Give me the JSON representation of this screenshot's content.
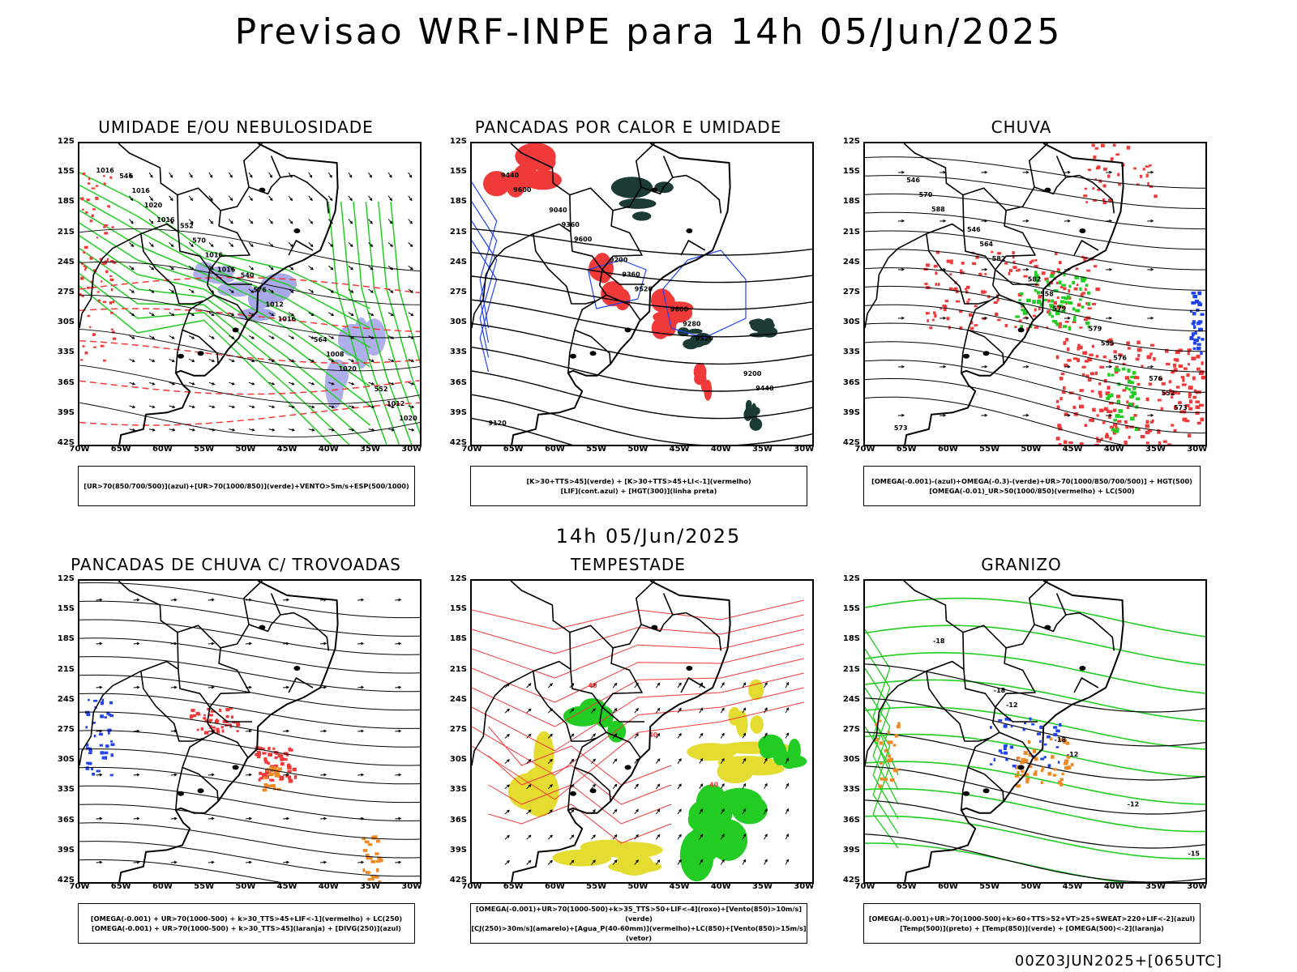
{
  "title": "Previsao WRF-INPE  para 14h 05/Jun/2025",
  "subtitle": "14h 05/Jun/2025",
  "footer": "00Z03JUN2025+[065UTC]",
  "lat_labels": [
    "12S",
    "15S",
    "18S",
    "21S",
    "24S",
    "27S",
    "30S",
    "33S",
    "36S",
    "39S",
    "42S"
  ],
  "lon_labels": [
    "70W",
    "65W",
    "60W",
    "55W",
    "50W",
    "45W",
    "40W",
    "35W",
    "30W"
  ],
  "colors": {
    "red": "#f03a3a",
    "green": "#22cc22",
    "blue": "#2244ee",
    "lavender": "#9a9ae6",
    "darkgreen": "#1d3b35",
    "yellow": "#e4dc30",
    "orange": "#ee8822",
    "black": "#000000"
  },
  "panels": [
    {
      "id": "umidade",
      "title": "UMIDADE E/OU NEBULOSIDADE",
      "legend": [
        "[UR>70(850/700/500)](azul)+[UR>70(1000/850)](verde)+VENTO>5m/s+ESP(500/1000)"
      ],
      "contour_labels": [
        "1016",
        "1016",
        "1016",
        "1016",
        "1020",
        "1020",
        "1020",
        "1016",
        "1012",
        "1008",
        "1012",
        "1016",
        "570",
        "576",
        "564",
        "552",
        "546",
        "552",
        "540"
      ]
    },
    {
      "id": "pancadas-calor",
      "title": "PANCADAS POR CALOR E UMIDADE",
      "legend": [
        "[K>30+TTS>45](verde) + [K>30+TTS>45+LI<-1](vermelho)",
        "[LIF](cont.azul) + [HGT(300)](linha preta)"
      ],
      "contour_labels": [
        "9600",
        "9600",
        "9520",
        "9520",
        "9440",
        "9440",
        "9360",
        "9360",
        "9280",
        "9200",
        "9120",
        "9040",
        "9200",
        "9600"
      ]
    },
    {
      "id": "chuva",
      "title": "CHUVA",
      "legend": [
        "[OMEGA(-0.001)-(azul)+OMEGA(-0.3)-(verde)+UR>70(1000/850/700/500)] + HGT(500)",
        "[OMEGA(-0.01)_UR>50(1000/850)(vermelho) + LC(500)"
      ],
      "contour_labels": [
        "588",
        "582",
        "579",
        "576",
        "573",
        "570",
        "564",
        "558",
        "555",
        "552",
        "546",
        "546",
        "582",
        "579",
        "576",
        "573"
      ]
    },
    {
      "id": "trovoadas",
      "title": "PANCADAS DE CHUVA C/ TROVOADAS",
      "legend": [
        "[OMEGA(-0.001) + UR>70(1000-500) + k>30_TTS>45+LIF<-1](vermelho) + LC(250)",
        "[OMEGA(-0.001) + UR>70(1000-500) + k>30_TTS>45](laranja) + [DIVG(250)](azul)"
      ],
      "contour_labels": []
    },
    {
      "id": "tempestade",
      "title": "TEMPESTADE",
      "legend": [
        "[OMEGA(-0.001)+UR>70(1000-500)+k>35_TTS>50+LIF<-4](roxo)+[Vento(850)>10m/s](verde)",
        "[CJ(250)>30m/s](amarelo)+[Agua_P(40-60mm)](vermelho)+LC(850)+[Vento(850)>15m/s](vetor)"
      ],
      "contour_labels": [
        "40",
        "40",
        "40"
      ]
    },
    {
      "id": "granizo",
      "title": "GRANIZO",
      "legend": [
        "[OMEGA(-0.001)+UR>70(1000-500)+k>60+TTS>52+VT>25+SWEAT>220+LIF<-2](azul)",
        "[Temp(500)](preto) + [Temp(850)](verde) + [OMEGA(500)<-2](laranja)"
      ],
      "contour_labels": [
        "-12",
        "-12",
        "-12",
        "-15",
        "-18",
        "-18",
        "-18"
      ]
    }
  ]
}
